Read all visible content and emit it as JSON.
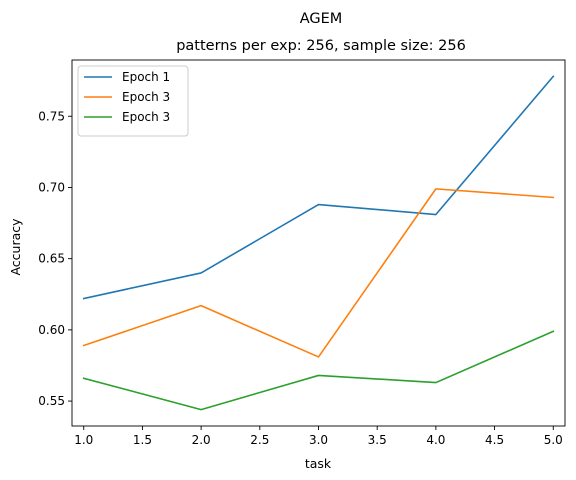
{
  "chart_data": {
    "type": "line",
    "title": "AGEM",
    "subtitle": "patterns per exp: 256, sample size: 256",
    "xlabel": "task",
    "ylabel": "Accuracy",
    "x": [
      1,
      2,
      3,
      4,
      5
    ],
    "xlim": [
      0.9,
      5.1
    ],
    "ylim": [
      0.5325,
      0.7895
    ],
    "x_ticks": [
      "1.0",
      "1.5",
      "2.0",
      "2.5",
      "3.0",
      "3.5",
      "4.0",
      "4.5",
      "5.0"
    ],
    "y_ticks": [
      "0.55",
      "0.60",
      "0.65",
      "0.70",
      "0.75"
    ],
    "grid": false,
    "legend_position": "top-left",
    "series": [
      {
        "name": "Epoch 1",
        "color": "#1f77b4",
        "values": [
          0.622,
          0.64,
          0.688,
          0.681,
          0.778
        ]
      },
      {
        "name": "Epoch 3",
        "color": "#ff7f0e",
        "values": [
          0.589,
          0.617,
          0.581,
          0.699,
          0.693
        ]
      },
      {
        "name": "Epoch 3",
        "color": "#2ca02c",
        "values": [
          0.566,
          0.544,
          0.568,
          0.563,
          0.599
        ]
      }
    ]
  }
}
